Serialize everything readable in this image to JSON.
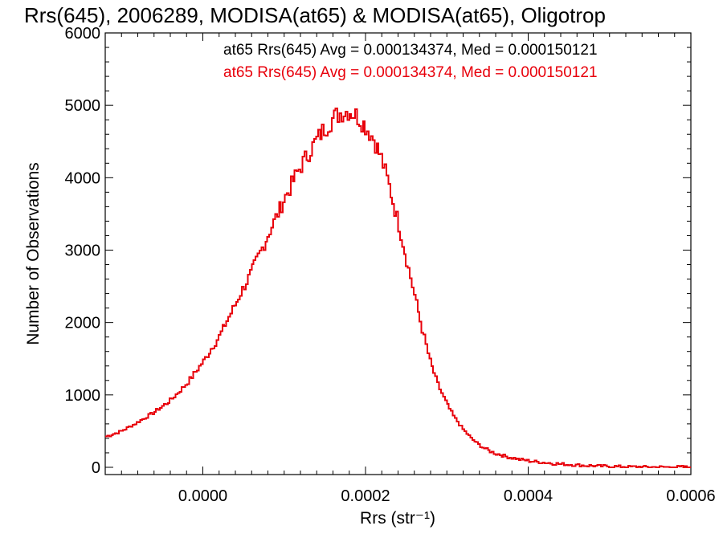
{
  "chart_data": {
    "type": "line",
    "title": "Rrs(645), 2006289, MODISA(at65) & MODISA(at65), Oligotrop",
    "xlabel": "Rrs (str⁻¹)",
    "ylabel": "Number of Observations",
    "xlim": [
      -0.00012,
      0.0006
    ],
    "ylim": [
      -100,
      6000
    ],
    "x_ticks": [
      0.0,
      0.0002,
      0.0004,
      0.0006
    ],
    "x_tick_labels": [
      "0.0000",
      "0.0002",
      "0.0004",
      "0.0006"
    ],
    "y_ticks": [
      0,
      1000,
      2000,
      3000,
      4000,
      5000,
      6000
    ],
    "y_tick_labels": [
      "0",
      "1000",
      "2000",
      "3000",
      "4000",
      "5000",
      "6000"
    ],
    "grid": false,
    "legend_position": "top-right",
    "annotations": [
      {
        "text": "at65 Rrs(645) Avg = 0.000134374, Med = 0.000150121",
        "color": "#000000"
      },
      {
        "text": "at65 Rrs(645) Avg = 0.000134374, Med = 0.000150121",
        "color": "#e8000b"
      }
    ],
    "series": [
      {
        "color": "#e8000b",
        "x": [
          -0.00012,
          -0.0001,
          -8e-05,
          -6e-05,
          -4e-05,
          -2e-05,
          0.0,
          2e-05,
          4e-05,
          6e-05,
          8e-05,
          0.0001,
          0.00012,
          0.00014,
          0.00015,
          0.00016,
          0.00017,
          0.00018,
          0.00019,
          0.0002,
          0.00021,
          0.00022,
          0.00023,
          0.00024,
          0.00025,
          0.00026,
          0.00027,
          0.00028,
          0.00029,
          0.0003,
          0.00031,
          0.00032,
          0.00033,
          0.00034,
          0.00035,
          0.00036,
          0.00038,
          0.0004,
          0.00042,
          0.00044,
          0.00046,
          0.00048,
          0.0005,
          0.00052,
          0.00055,
          0.0006
        ],
        "y": [
          420,
          500,
          620,
          760,
          920,
          1150,
          1450,
          1800,
          2250,
          2700,
          3200,
          3700,
          4150,
          4520,
          4680,
          4820,
          4900,
          4930,
          4850,
          4720,
          4540,
          4260,
          3850,
          3400,
          2900,
          2400,
          1900,
          1450,
          1120,
          880,
          680,
          530,
          400,
          310,
          240,
          190,
          130,
          90,
          65,
          45,
          30,
          20,
          12,
          8,
          4,
          2
        ]
      }
    ]
  }
}
